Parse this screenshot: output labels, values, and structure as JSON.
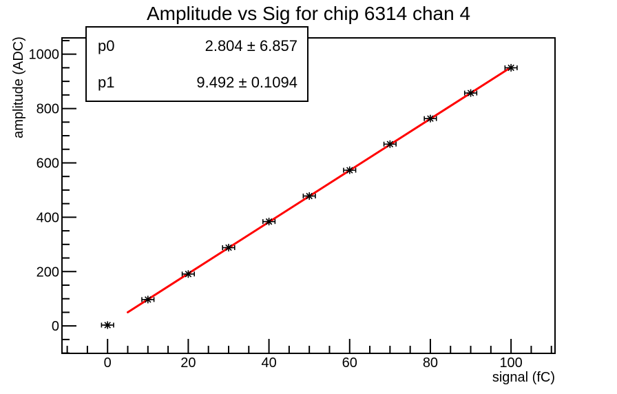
{
  "title": "Amplitude vs Sig for chip 6314 chan 4",
  "stats_box": {
    "rows": [
      {
        "name": "p0",
        "value": "2.804 ± 6.857"
      },
      {
        "name": "p1",
        "value": "9.492 ± 0.1094"
      }
    ]
  },
  "chart_data": {
    "type": "scatter",
    "title": "Amplitude vs Sig for chip 6314 chan 4",
    "xlabel": "signal (fC)",
    "ylabel": "amplitude (ADC)",
    "x": [
      0,
      10,
      20,
      30,
      40,
      50,
      60,
      70,
      80,
      90,
      100
    ],
    "y": [
      3,
      97,
      191,
      288,
      384,
      478,
      573,
      669,
      763,
      857,
      950
    ],
    "x_error": 1.5,
    "marker": "asterisk-with-error-bars",
    "marker_color": "#000000",
    "fit": {
      "type": "linear",
      "p0": 2.804,
      "p0_error": 6.857,
      "p1": 9.492,
      "p1_error": 0.1094,
      "x_range": [
        5,
        100
      ],
      "color": "#ff0000"
    },
    "xlim": [
      -11.3,
      110.9
    ],
    "ylim": [
      -101,
      1060
    ],
    "x_ticks": [
      0,
      20,
      40,
      60,
      80,
      100
    ],
    "y_ticks": [
      0,
      200,
      400,
      600,
      800,
      1000
    ],
    "x_minor_step": 5,
    "y_minor_step": 50,
    "grid": false,
    "legend": "none",
    "axis_color": "#000000",
    "background_color": "#ffffff"
  }
}
